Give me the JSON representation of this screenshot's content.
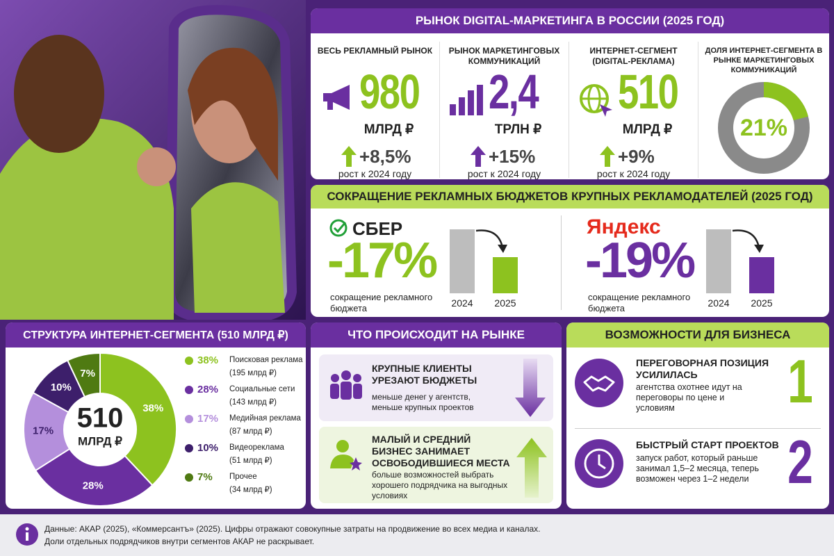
{
  "market": {
    "title": "РЫНОК DIGITAL-МАРКЕТИНГА В РОССИИ (2025 ГОД)",
    "cards": [
      {
        "label": "ВЕСЬ РЕКЛАМНЫЙ РЫНОК",
        "value": "980",
        "unit": "МЛРД ₽",
        "growth": "+8,5%",
        "note": "рост к 2024 году"
      },
      {
        "label": "РЫНОК МАРКЕТИНГОВЫХ КОММУНИКАЦИЙ",
        "value": "2,4",
        "unit": "ТРЛН ₽",
        "growth": "+15%",
        "note": "рост к 2024 году"
      },
      {
        "label": "ИНТЕРНЕТ-СЕГМЕНТ (DIGITAL-РЕКЛАМА)",
        "value": "510",
        "unit": "МЛРД ₽",
        "growth": "+9%",
        "note": "рост к 2024 году"
      }
    ],
    "share": {
      "label": "ДОЛЯ ИНТЕРНЕТ-СЕГМЕНТА В РЫНКЕ МАРКЕТИНГОВЫХ КОММУНИКАЦИЙ",
      "value": 21,
      "value_label": "21%",
      "color": "#8dc21f"
    }
  },
  "budgets": {
    "title": "СОКРАЩЕНИЕ РЕКЛАМНЫХ БЮДЖЕТОВ КРУПНЫХ РЕКЛАМОДАТЕЛЕЙ (2025 ГОД)",
    "companies": [
      {
        "name": "СБЕР",
        "change": "-17%",
        "caption": "сокращение рекламного бюджета",
        "years": [
          "2024",
          "2025"
        ]
      },
      {
        "name": "Яндекс",
        "change": "-19%",
        "caption": "сокращение рекламного бюджета",
        "years": [
          "2024",
          "2025"
        ]
      }
    ]
  },
  "structure": {
    "title": "СТРУКТУРА ИНТЕРНЕТ-СЕГМЕНТА (510 МЛРД ₽)",
    "total": "510",
    "unit": "МЛРД ₽",
    "segments": [
      {
        "name": "Поисковая реклама",
        "amount": "(195 млрд ₽)",
        "value": 38,
        "value_label": "38%",
        "color": "#8dc21f"
      },
      {
        "name": "Социальные сети",
        "amount": "(143 млрд ₽)",
        "value": 28,
        "value_label": "28%",
        "color": "#6a2fa0"
      },
      {
        "name": "Медийная реклама",
        "amount": "(87 млрд ₽)",
        "value": 17,
        "value_label": "17%",
        "color": "#b48fdc"
      },
      {
        "name": "Видеореклама",
        "amount": "(51 млрд ₽)",
        "value": 10,
        "value_label": "10%",
        "color": "#3d1f6b"
      },
      {
        "name": "Прочее",
        "amount": "(34 млрд ₽)",
        "value": 7,
        "value_label": "7%",
        "color": "#4f7a12"
      }
    ]
  },
  "market_events": {
    "title": "ЧТО ПРОИСХОДИТ НА РЫНКЕ",
    "items": [
      {
        "title": "КРУПНЫЕ КЛИЕНТЫ УРЕЗАЮТ БЮДЖЕТЫ",
        "text": "меньше денег у агентств, меньше крупных проектов"
      },
      {
        "title": "МАЛЫЙ И СРЕДНИЙ БИЗНЕС ЗАНИМАЕТ ОСВОБОДИВШИЕСЯ МЕСТА",
        "text": "больше возможностей выбрать хорошего подрядчика на выгодных условиях"
      }
    ]
  },
  "opportunities": {
    "title": "ВОЗМОЖНОСТИ ДЛЯ БИЗНЕСА",
    "items": [
      {
        "number": "1",
        "title": "ПЕРЕГОВОРНАЯ ПОЗИЦИЯ УСИЛИЛАСЬ",
        "text": "агентства охотнее идут на переговоры по цене и условиям"
      },
      {
        "number": "2",
        "title": "БЫСТРЫЙ СТАРТ ПРОЕКТОВ",
        "text": "запуск работ, который раньше занимал 1,5–2 месяца, теперь возможен через 1–2 недели"
      }
    ]
  },
  "footer": {
    "lines": [
      "Данные: АКАР (2025), «Коммерсантъ» (2025). Цифры отражают совокупные затраты на продвижение во всех медиа и каналах.",
      "Доли отдельных подрядчиков внутри сегментов АКАР не раскрывает."
    ]
  }
}
